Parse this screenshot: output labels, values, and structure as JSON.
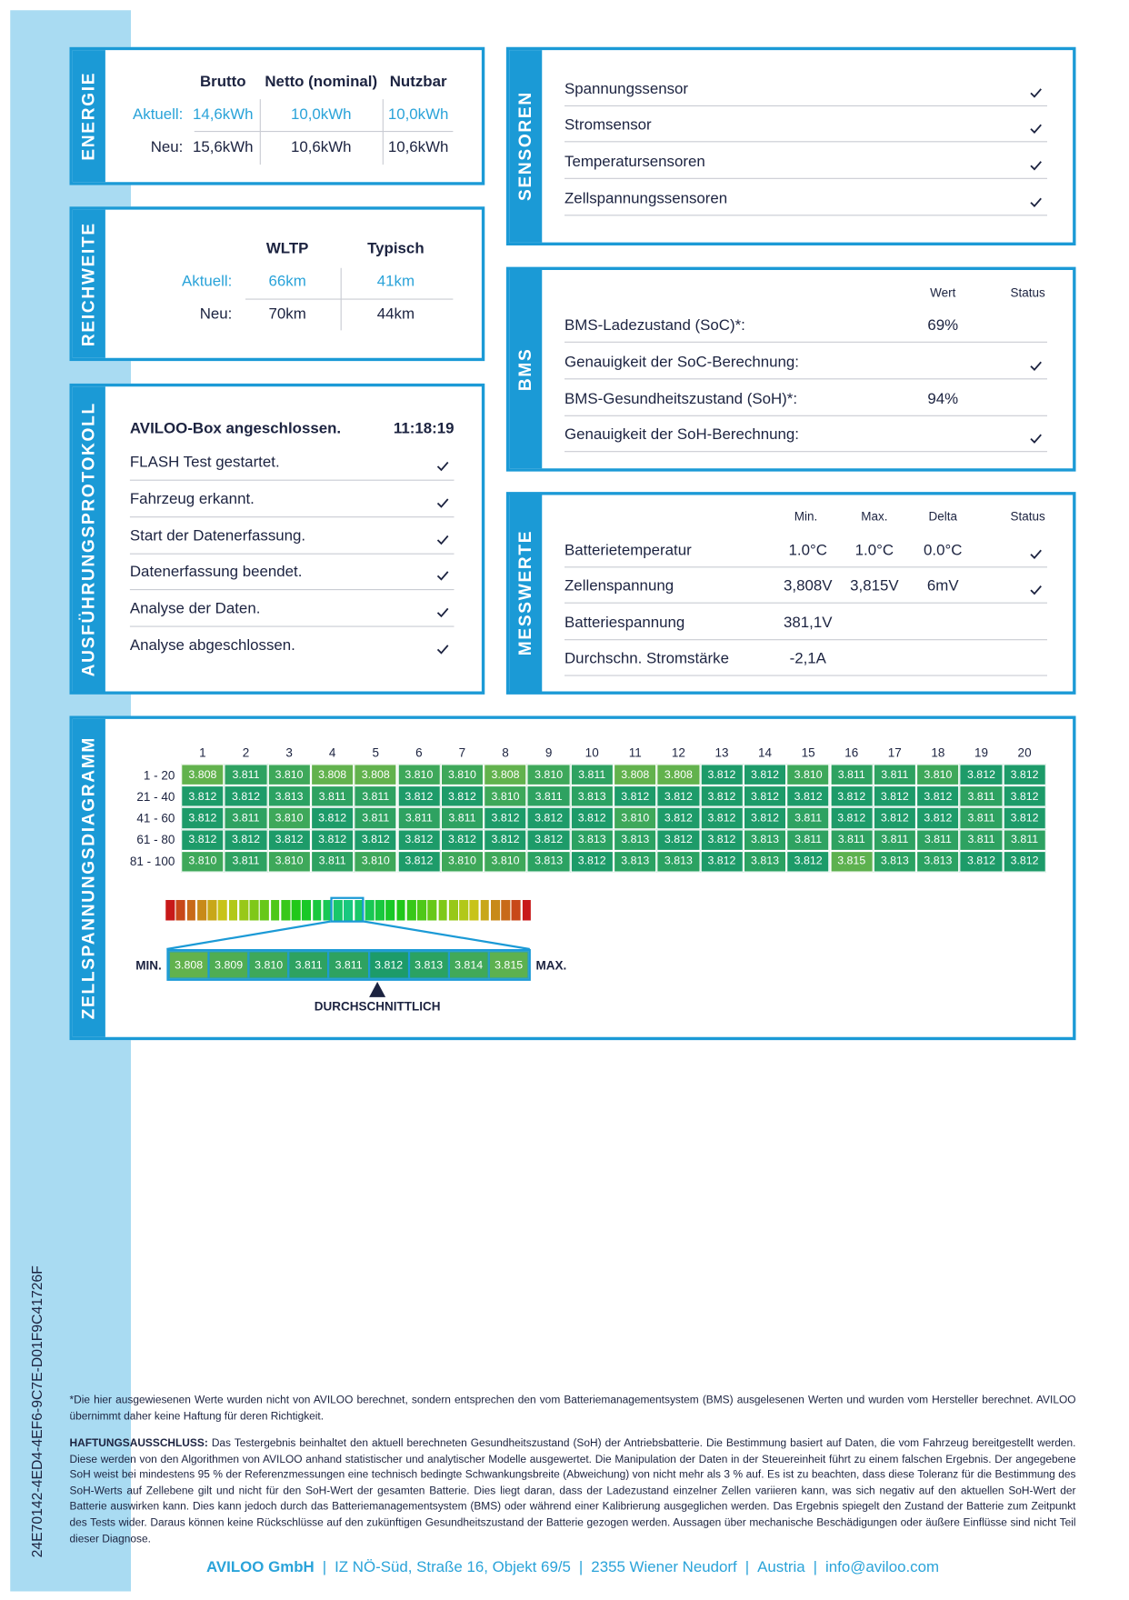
{
  "document_id": "24E70142-4ED4-4EF6-9C7E-D01F9C41726F",
  "energie": {
    "title": "ENERGIE",
    "columns": [
      "Brutto",
      "Netto (nominal)",
      "Nutzbar"
    ],
    "rows": [
      {
        "label": "Aktuell:",
        "values": [
          "14,6kWh",
          "10,0kWh",
          "10,0kWh"
        ]
      },
      {
        "label": "Neu:",
        "values": [
          "15,6kWh",
          "10,6kWh",
          "10,6kWh"
        ]
      }
    ]
  },
  "reichweite": {
    "title": "REICHWEITE",
    "columns": [
      "WLTP",
      "Typisch"
    ],
    "rows": [
      {
        "label": "Aktuell:",
        "values": [
          "66km",
          "41km"
        ]
      },
      {
        "label": "Neu:",
        "values": [
          "70km",
          "44km"
        ]
      }
    ]
  },
  "protokoll": {
    "title": "AUSFÜHRUNGSPROTOKOLL",
    "header": "AVILOO-Box angeschlossen.",
    "time": "11:18:19",
    "steps": [
      "FLASH Test gestartet.",
      "Fahrzeug erkannt.",
      "Start der Datenerfassung.",
      "Datenerfassung beendet.",
      "Analyse der Daten.",
      "Analyse abgeschlossen."
    ]
  },
  "sensoren": {
    "title": "SENSOREN",
    "items": [
      "Spannungssensor",
      "Stromsensor",
      "Temperatursensoren",
      "Zellspannungssensoren"
    ]
  },
  "bms": {
    "title": "BMS",
    "columns": [
      "Wert",
      "Status"
    ],
    "rows": [
      {
        "label": "BMS-Ladezustand (SoC)*:",
        "value": "69%"
      },
      {
        "label": "Genauigkeit der SoC-Berechnung:"
      },
      {
        "label": "BMS-Gesundheitszustand (SoH)*:",
        "value": "94%"
      },
      {
        "label": "Genauigkeit der SoH-Berechnung:"
      }
    ]
  },
  "messwerte": {
    "title": "MESSWERTE",
    "columns": [
      "Min.",
      "Max.",
      "Delta",
      "Status"
    ],
    "rows": [
      {
        "label": "Batterietemperatur",
        "values": [
          "1.0°C",
          "1.0°C",
          "0.0°C"
        ]
      },
      {
        "label": "Zellenspannung",
        "values": [
          "3,808V",
          "3,815V",
          "6mV"
        ]
      },
      {
        "label": "Batteriespannung",
        "values": [
          "381,1V"
        ]
      },
      {
        "label": "Durchschn. Stromstärke",
        "values": [
          "-2,1A"
        ]
      }
    ]
  },
  "zellspannung": {
    "title": "ZELLSPANNUNGSDIAGRAMM",
    "column_labels": [
      1,
      2,
      3,
      4,
      5,
      6,
      7,
      8,
      9,
      10,
      11,
      12,
      13,
      14,
      15,
      16,
      17,
      18,
      19,
      20
    ],
    "row_labels": [
      "1 - 20",
      "21 - 40",
      "41 - 60",
      "61 - 80",
      "81 - 100"
    ],
    "cells": [
      [
        "3.808",
        "3.811",
        "3.810",
        "3.808",
        "3.808",
        "3.810",
        "3.810",
        "3.808",
        "3.810",
        "3.811",
        "3.808",
        "3.808",
        "3.812",
        "3.812",
        "3.810",
        "3.811",
        "3.811",
        "3.810",
        "3.812",
        "3.812"
      ],
      [
        "3.812",
        "3.812",
        "3.813",
        "3.811",
        "3.811",
        "3.812",
        "3.812",
        "3.810",
        "3.811",
        "3.813",
        "3.812",
        "3.812",
        "3.812",
        "3.812",
        "3.812",
        "3.812",
        "3.812",
        "3.812",
        "3.811",
        "3.812"
      ],
      [
        "3.812",
        "3.811",
        "3.810",
        "3.812",
        "3.811",
        "3.811",
        "3.811",
        "3.812",
        "3.812",
        "3.812",
        "3.810",
        "3.812",
        "3.812",
        "3.812",
        "3.811",
        "3.812",
        "3.812",
        "3.812",
        "3.811",
        "3.812"
      ],
      [
        "3.812",
        "3.812",
        "3.812",
        "3.812",
        "3.812",
        "3.812",
        "3.812",
        "3.812",
        "3.812",
        "3.813",
        "3.813",
        "3.812",
        "3.812",
        "3.813",
        "3.811",
        "3.811",
        "3.811",
        "3.811",
        "3.811",
        "3.811"
      ],
      [
        "3.810",
        "3.811",
        "3.810",
        "3.811",
        "3.810",
        "3.812",
        "3.810",
        "3.810",
        "3.813",
        "3.812",
        "3.813",
        "3.813",
        "3.812",
        "3.813",
        "3.812",
        "3.815",
        "3.813",
        "3.813",
        "3.812",
        "3.812"
      ]
    ],
    "scale": {
      "values": [
        "3.808",
        "3.809",
        "3.810",
        "3.811",
        "3.811",
        "3.812",
        "3.813",
        "3.814",
        "3.815"
      ],
      "colors": [
        "#62b24d",
        "#4fad53",
        "#3ea85a",
        "#2ea261",
        "#2ea261",
        "#1d9b69",
        "#2ba262",
        "#41a959",
        "#5db14f"
      ],
      "min_label": "MIN.",
      "max_label": "MAX.",
      "average_label": "DURCHSCHNITTLICH"
    }
  },
  "footnote": "*Die hier ausgewiesenen Werte wurden nicht von AVILOO berechnet, sondern entsprechen den vom Batteriemanagementsystem (BMS) ausgelesenen Werten und wurden vom Hersteller berechnet. AVILOO übernimmt daher keine Haftung für deren Richtigkeit.",
  "disclaimer": {
    "heading": "HAFTUNGSAUSSCHLUSS:",
    "text": "Das Testergebnis beinhaltet den aktuell berechneten Gesundheitszustand (SoH) der Antriebsbatterie. Die Bestimmung basiert auf Daten, die vom Fahrzeug bereitgestellt werden. Diese werden von den Algorithmen von AVILOO anhand statistischer und analytischer Modelle ausgewertet. Die Manipulation der Daten in der Steuereinheit führt zu einem falschen Ergebnis. Der angegebene SoH weist bei mindestens 95 % der Referenzmessungen eine technisch bedingte Schwankungsbreite (Abweichung) von nicht mehr als 3 % auf. Es ist zu beachten, dass diese Toleranz für die Bestimmung des SoH-Werts auf Zellebene gilt und nicht für den SoH-Wert der gesamten Batterie. Dies liegt daran, dass der Ladezustand einzelner Zellen variieren kann, was sich negativ auf den aktuellen SoH-Wert der Batterie auswirken kann. Dies kann jedoch durch das Batteriemanagementsystem (BMS) oder während einer Kalibrierung ausgeglichen werden. Das Ergebnis spiegelt den Zustand der Batterie zum Zeitpunkt des Tests wider. Daraus können keine Rückschlüsse auf den zukünftigen Gesundheitszustand der Batterie gezogen werden. Aussagen über mechanische Beschädigungen oder äußere Einflüsse sind nicht Teil dieser Diagnose."
  },
  "footer": {
    "parts": [
      "AVILOO GmbH",
      "IZ NÖ-Süd, Straße 16, Objekt 69/5",
      "2355 Wiener Neudorf",
      "Austria",
      "info@aviloo.com"
    ],
    "separator": "|"
  }
}
